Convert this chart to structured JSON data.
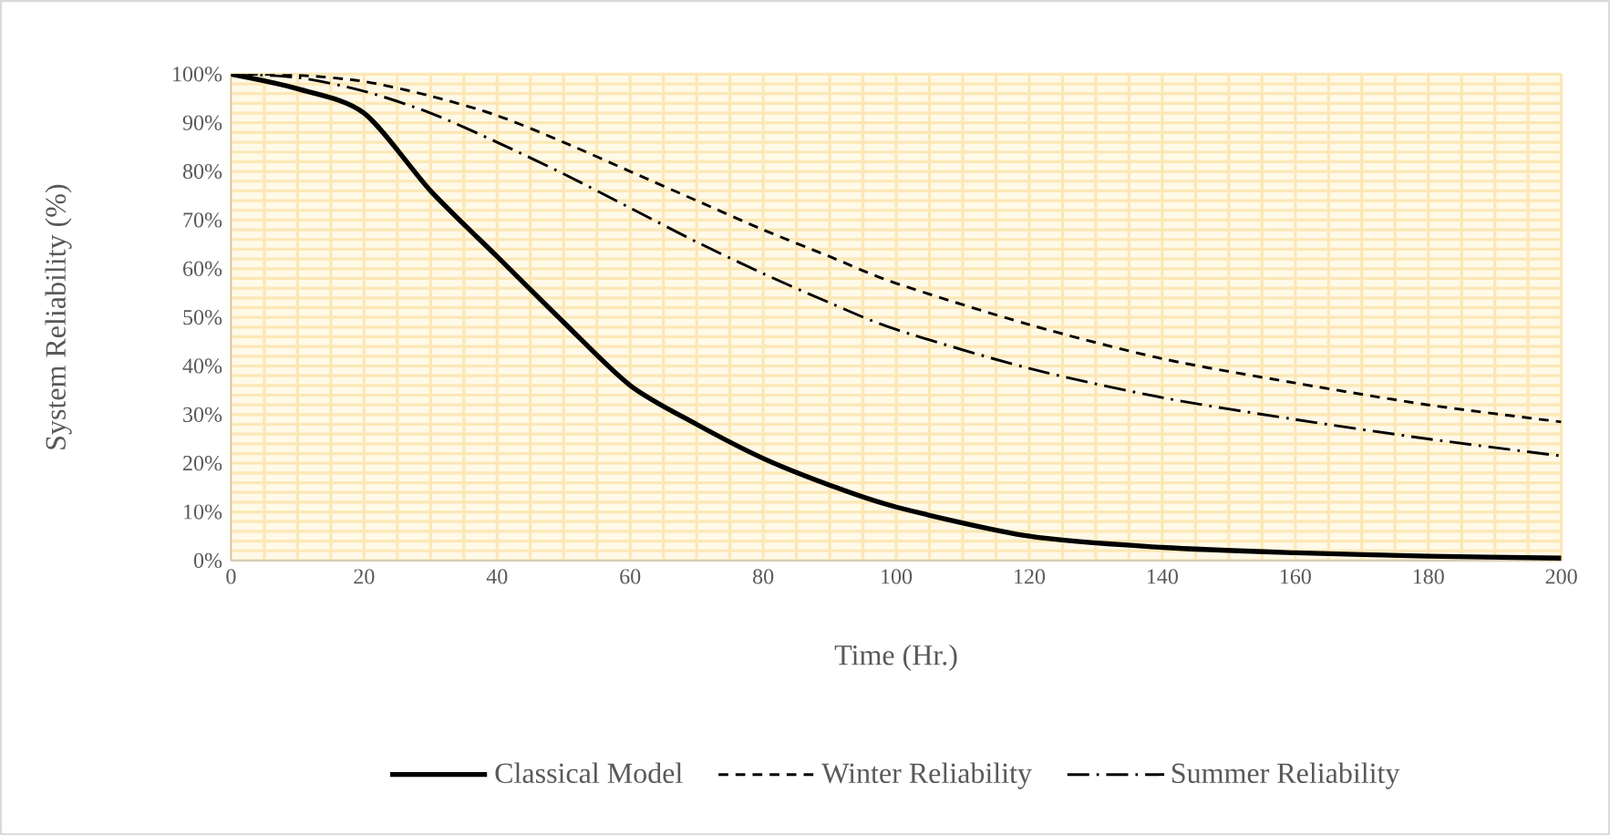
{
  "chart_data": {
    "type": "line",
    "xlabel": "Time (Hr.)",
    "ylabel": "System Reliability (%)",
    "x": [
      0,
      10,
      20,
      30,
      40,
      50,
      60,
      70,
      80,
      90,
      100,
      120,
      140,
      160,
      180,
      200
    ],
    "series": [
      {
        "name": "Classical Model",
        "color": "#000000",
        "line_style": "solid",
        "values": [
          100,
          97,
          92,
          76,
          62.5,
          49,
          36,
          28,
          21,
          15.5,
          11,
          5,
          2.7,
          1.6,
          0.9,
          0.5
        ]
      },
      {
        "name": "Winter Reliability",
        "color": "#000000",
        "line_style": "dashed",
        "values": [
          100,
          99.8,
          98.5,
          95.5,
          91.5,
          86,
          80,
          74,
          68,
          62.5,
          57,
          48.5,
          41.5,
          36.5,
          32,
          28.5
        ]
      },
      {
        "name": "Summer Reliability",
        "color": "#000000",
        "line_style": "dashdot",
        "values": [
          100,
          99.3,
          96.5,
          92,
          86,
          79.5,
          72.5,
          65.5,
          59,
          53,
          47.5,
          39.5,
          33.5,
          29,
          25,
          21.5
        ]
      }
    ],
    "xlim": [
      0,
      200
    ],
    "ylim": [
      0,
      100
    ],
    "xticks": [
      0,
      20,
      40,
      60,
      80,
      100,
      120,
      140,
      160,
      180,
      200
    ],
    "yticks": [
      {
        "value": 0,
        "label": "0%"
      },
      {
        "value": 10,
        "label": "10%"
      },
      {
        "value": 20,
        "label": "20%"
      },
      {
        "value": 30,
        "label": "30%"
      },
      {
        "value": 40,
        "label": "40%"
      },
      {
        "value": 50,
        "label": "50%"
      },
      {
        "value": 60,
        "label": "60%"
      },
      {
        "value": 70,
        "label": "70%"
      },
      {
        "value": 80,
        "label": "80%"
      },
      {
        "value": 90,
        "label": "90%"
      },
      {
        "value": 100,
        "label": "100%"
      }
    ],
    "grid": true,
    "legend": "bottom",
    "marker": "none"
  }
}
